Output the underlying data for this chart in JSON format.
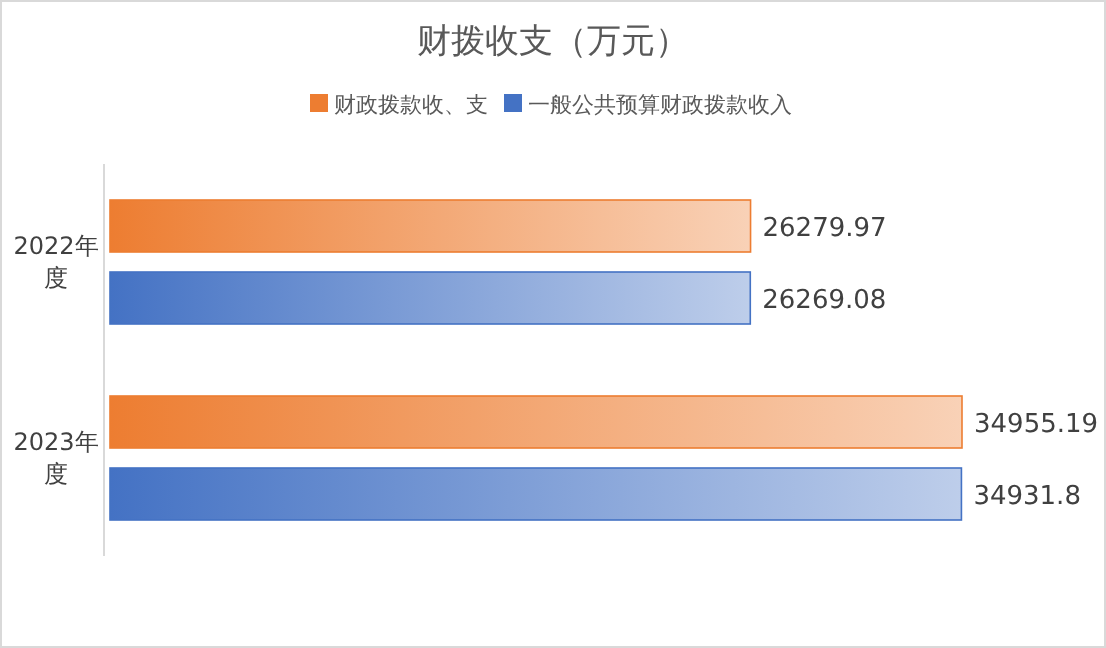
{
  "chart_data": {
    "type": "bar",
    "orientation": "horizontal",
    "title": "财拨收支（万元）",
    "categories": [
      "2022年度",
      "2023年度"
    ],
    "series": [
      {
        "name": "财政拨款收、支",
        "color": "#ed7d31",
        "values": [
          26279.97,
          34955.19
        ]
      },
      {
        "name": "一般公共预算财政拨款收入",
        "color": "#4472c4",
        "values": [
          26269.08,
          34931.8
        ]
      }
    ],
    "data_labels": true,
    "legend": "top"
  }
}
